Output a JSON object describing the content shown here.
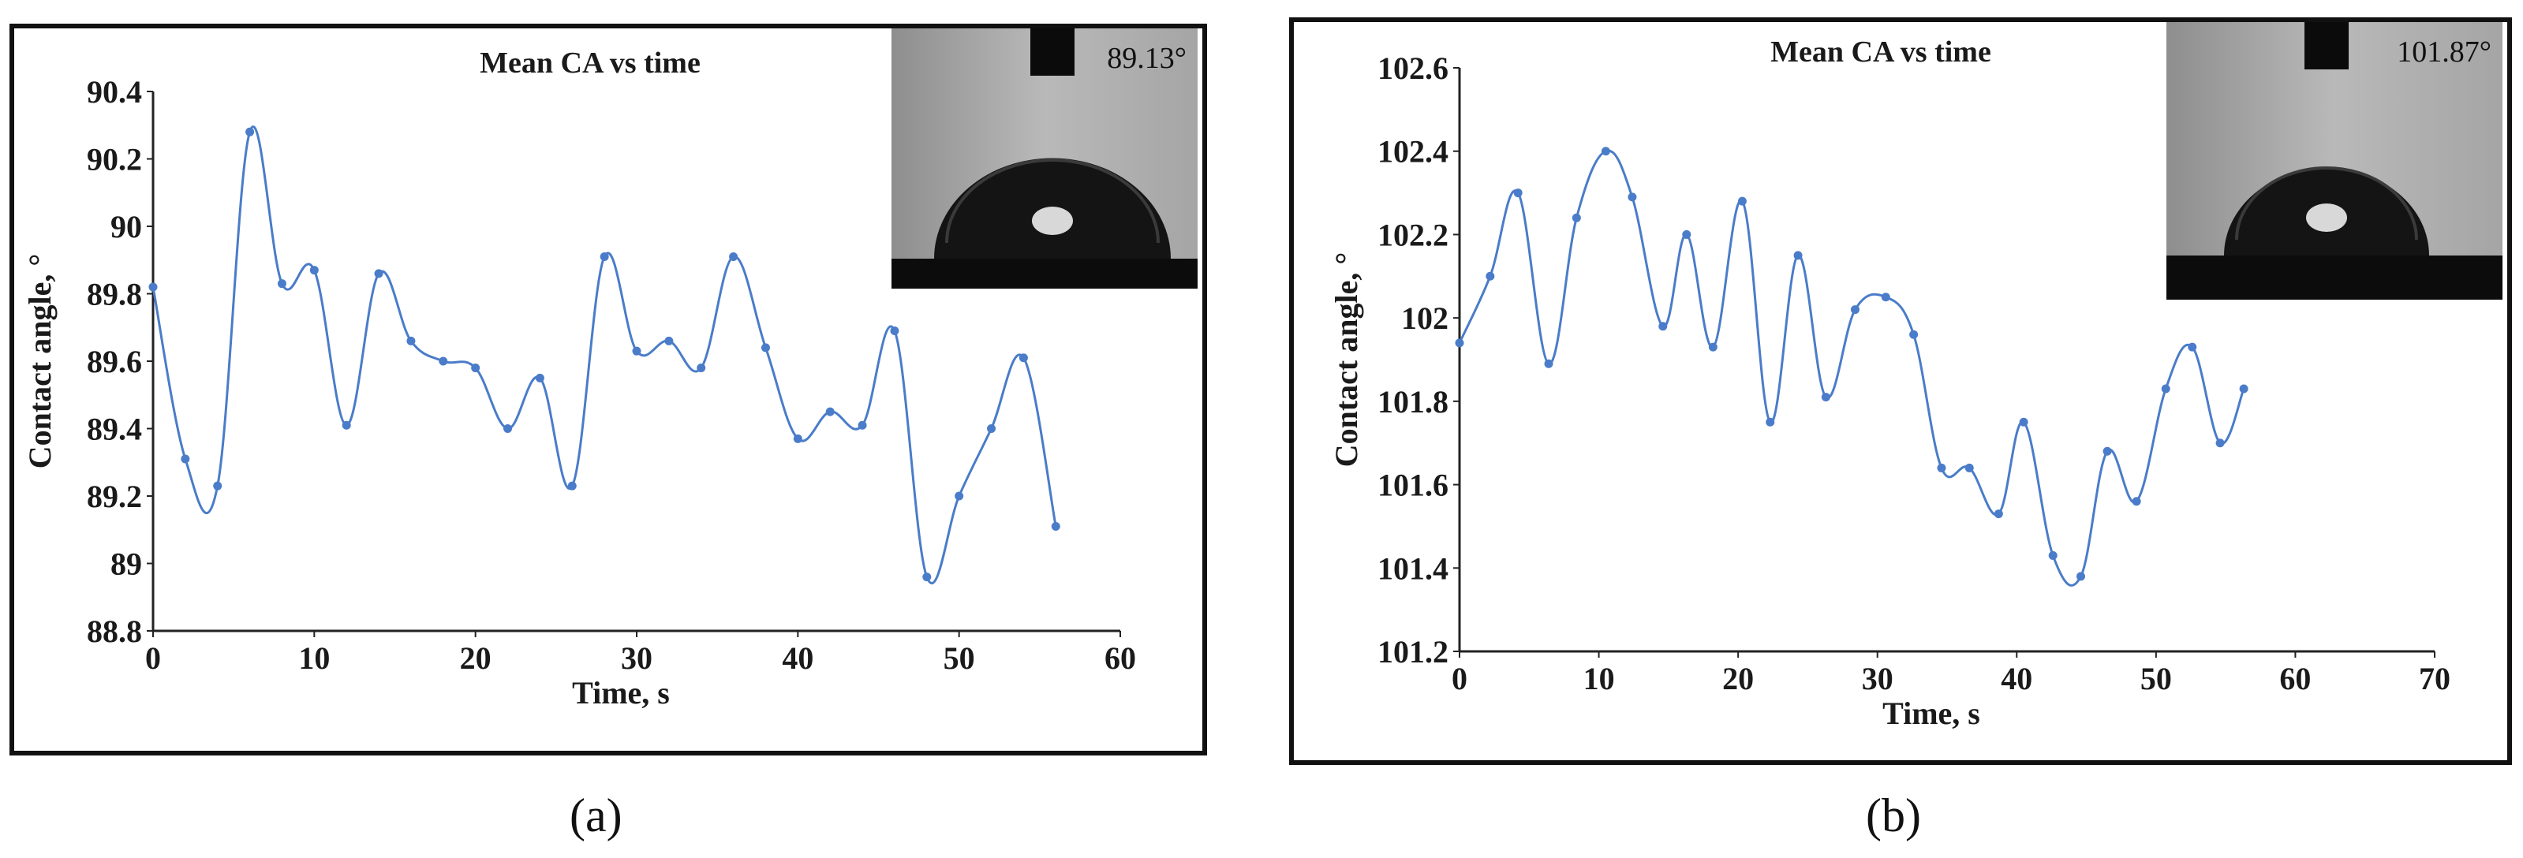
{
  "captions": {
    "a": "(a)",
    "b": "(b)"
  },
  "colors": {
    "series": "#4a7cc9",
    "axis": "#222222"
  },
  "chart_data": [
    {
      "type": "line",
      "panel": "a",
      "title": "Mean CA vs time",
      "xlabel": "Time, s",
      "ylabel": "Contact angle, °",
      "xlim": [
        0,
        60
      ],
      "ylim": [
        88.8,
        90.4
      ],
      "xticks": [
        0,
        10,
        20,
        30,
        40,
        50,
        60
      ],
      "yticks": [
        88.8,
        89,
        89.2,
        89.4,
        89.6,
        89.8,
        90,
        90.2,
        90.4
      ],
      "grid": false,
      "inset_label": "89.13°",
      "series": [
        {
          "x": [
            0,
            2,
            4,
            6,
            8,
            10,
            12,
            14,
            16,
            18,
            20,
            22,
            24,
            26,
            28,
            30,
            32,
            34,
            36,
            38,
            40,
            42,
            44,
            46,
            48,
            50,
            52,
            54,
            56
          ],
          "y": [
            89.82,
            89.31,
            89.23,
            90.28,
            89.83,
            89.87,
            89.41,
            89.86,
            89.66,
            89.6,
            89.58,
            89.4,
            89.55,
            89.23,
            89.91,
            89.63,
            89.66,
            89.58,
            89.91,
            89.64,
            89.37,
            89.45,
            89.41,
            89.69,
            88.96,
            89.2,
            89.4,
            89.61,
            89.11
          ]
        }
      ]
    },
    {
      "type": "line",
      "panel": "b",
      "title": "Mean CA vs time",
      "xlabel": "Time, s",
      "ylabel": "Contact angle, °",
      "xlim": [
        0,
        70
      ],
      "ylim": [
        101.2,
        102.6
      ],
      "xticks": [
        0,
        10,
        20,
        30,
        40,
        50,
        60,
        70
      ],
      "yticks": [
        101.2,
        101.4,
        101.6,
        101.8,
        102,
        102.2,
        102.4,
        102.6
      ],
      "grid": false,
      "inset_label": "101.87°",
      "series": [
        {
          "x": [
            0,
            2.2,
            4.2,
            6.4,
            8.4,
            10.5,
            12.4,
            14.6,
            16.3,
            18.2,
            20.3,
            22.3,
            24.3,
            26.3,
            28.4,
            30.6,
            32.6,
            34.6,
            36.6,
            38.7,
            40.5,
            42.6,
            44.6,
            46.5,
            48.6,
            50.7,
            52.6,
            54.6,
            56.3
          ],
          "y": [
            101.94,
            102.1,
            102.3,
            101.89,
            102.24,
            102.4,
            102.29,
            101.98,
            102.2,
            101.93,
            102.28,
            101.75,
            102.15,
            101.81,
            102.02,
            102.05,
            101.96,
            101.64,
            101.64,
            101.53,
            101.75,
            101.43,
            101.38,
            101.68,
            101.56,
            101.83,
            101.93,
            101.7,
            101.83
          ]
        }
      ]
    }
  ]
}
